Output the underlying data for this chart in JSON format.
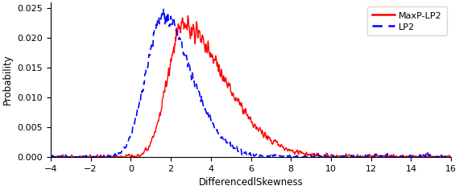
{
  "title": "",
  "xlabel": "DifferencedlSkewness",
  "ylabel": "Probability",
  "xlim": [
    -4,
    16
  ],
  "ylim": [
    0,
    0.026
  ],
  "xticks": [
    -4,
    -2,
    0,
    2,
    4,
    6,
    8,
    10,
    12,
    14,
    16
  ],
  "yticks": [
    0,
    0.005,
    0.01,
    0.015,
    0.02,
    0.025
  ],
  "legend": [
    "MaxP-LP2",
    "LP2"
  ],
  "red_color": "#ff0000",
  "blue_color": "#0000ff",
  "figsize": [
    5.7,
    2.36
  ],
  "dpi": 100
}
